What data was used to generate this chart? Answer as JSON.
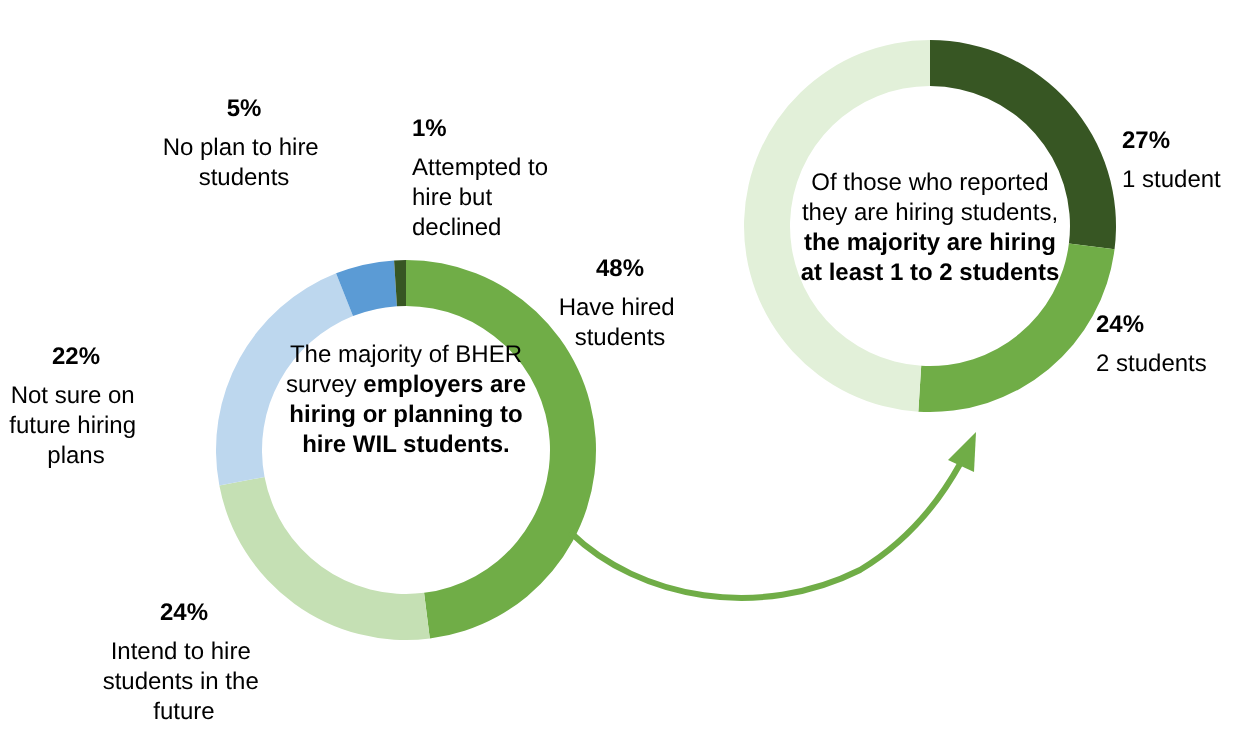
{
  "chart_data": [
    {
      "type": "donut",
      "categories": [
        "Have hired students",
        "Intend to hire students in the future",
        "Not sure on future hiring plans",
        "No plan to hire students",
        "Attempted to hire but declined"
      ],
      "values": [
        48,
        24,
        22,
        5,
        1
      ],
      "value_labels": [
        "48%",
        "24%",
        "22%",
        "5%",
        "1%"
      ],
      "colors": [
        "#70ad47",
        "#c5e0b4",
        "#bdd7ee",
        "#5b9bd5",
        "#375623"
      ],
      "annotations": [
        "The majority of BHER survey",
        "employers are hiring or planning to hire WIL students."
      ]
    },
    {
      "type": "donut",
      "categories": [
        "1 student",
        "2 students",
        null
      ],
      "values": [
        27,
        24,
        49
      ],
      "value_labels": [
        "27%",
        "24%",
        null
      ],
      "colors": [
        "#375623",
        "#70ad47",
        "#e2f0d9"
      ],
      "annotations": [
        "Of those who reported they are hiring students,",
        "the majority are hiring at least 1 to 2 students"
      ]
    }
  ]
}
